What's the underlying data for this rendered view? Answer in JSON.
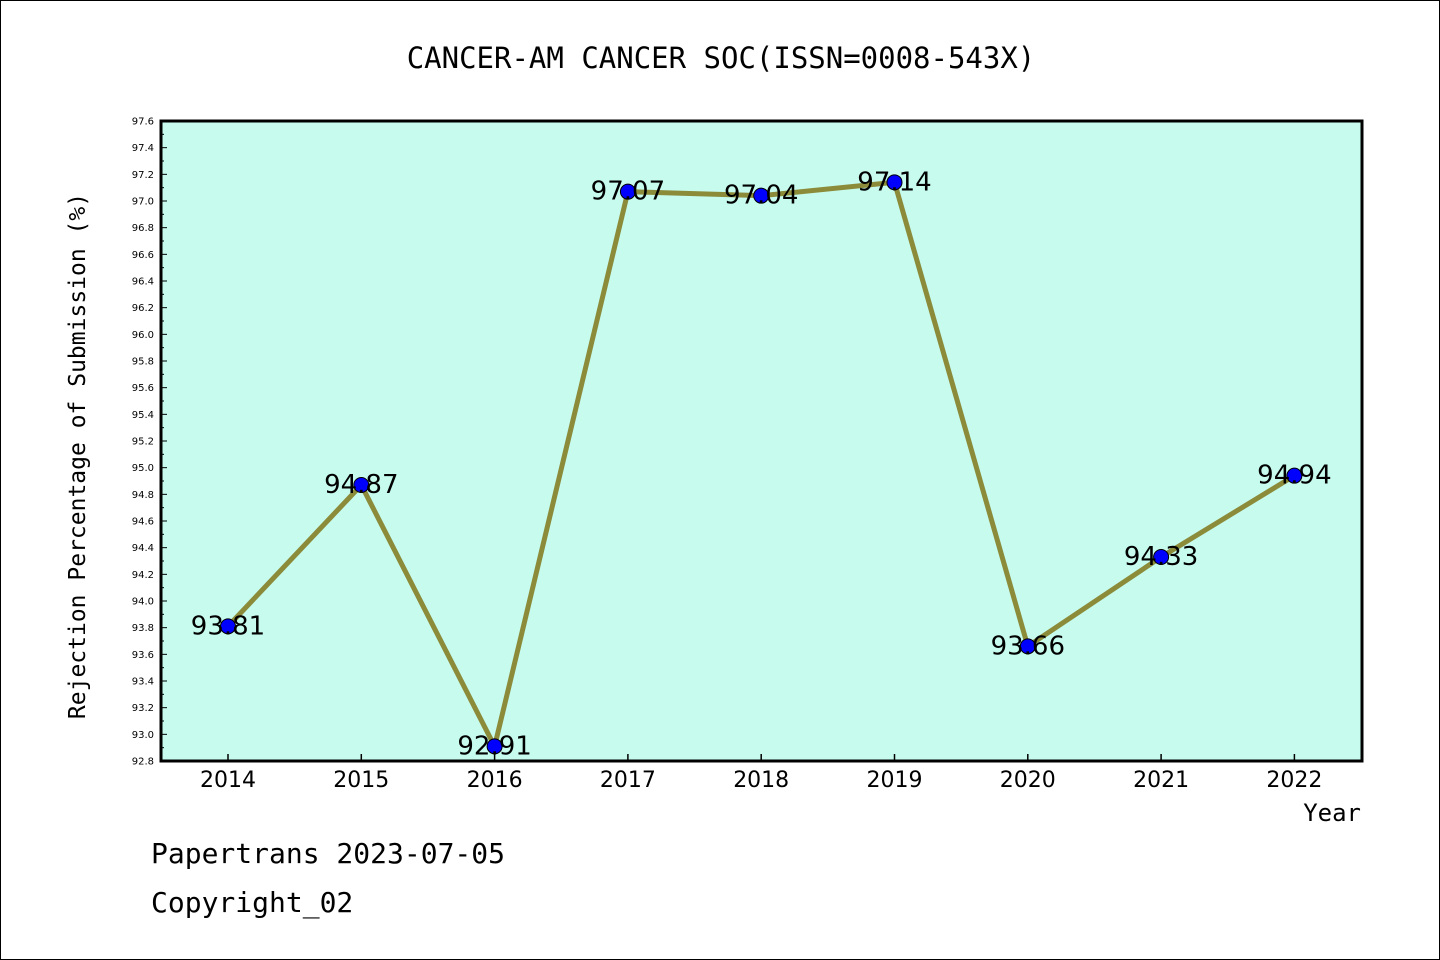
{
  "chart_data": {
    "type": "line",
    "title": "CANCER-AM CANCER SOC(ISSN=0008-543X)",
    "xlabel": "Year",
    "ylabel": "Rejection Percentage of Submission (%)",
    "categories": [
      "2014",
      "2015",
      "2016",
      "2017",
      "2018",
      "2019",
      "2020",
      "2021",
      "2022"
    ],
    "values": [
      93.81,
      94.87,
      92.91,
      97.07,
      97.04,
      97.14,
      93.66,
      94.33,
      94.94
    ],
    "data_labels": [
      "93.81",
      "94.87",
      "92.91",
      "97.07",
      "97.04",
      "97.14",
      "93.66",
      "94.33",
      "94.94"
    ],
    "ylim": [
      92.8,
      97.6
    ],
    "yticks": [
      "92.8",
      "93.0",
      "93.2",
      "93.4",
      "93.6",
      "93.8",
      "94.0",
      "94.2",
      "94.4",
      "94.6",
      "94.8",
      "95.0",
      "95.2",
      "95.4",
      "95.6",
      "95.8",
      "96.0",
      "96.2",
      "96.4",
      "96.6",
      "96.8",
      "97.0",
      "97.2",
      "97.4",
      "97.6"
    ],
    "grid": false,
    "colors": {
      "plot_background": "#c6fbee",
      "line": "#8b8b3a",
      "marker": "#0000ff"
    }
  },
  "footer": {
    "line1": "Papertrans 2023-07-05",
    "line2": "Copyright_02"
  }
}
